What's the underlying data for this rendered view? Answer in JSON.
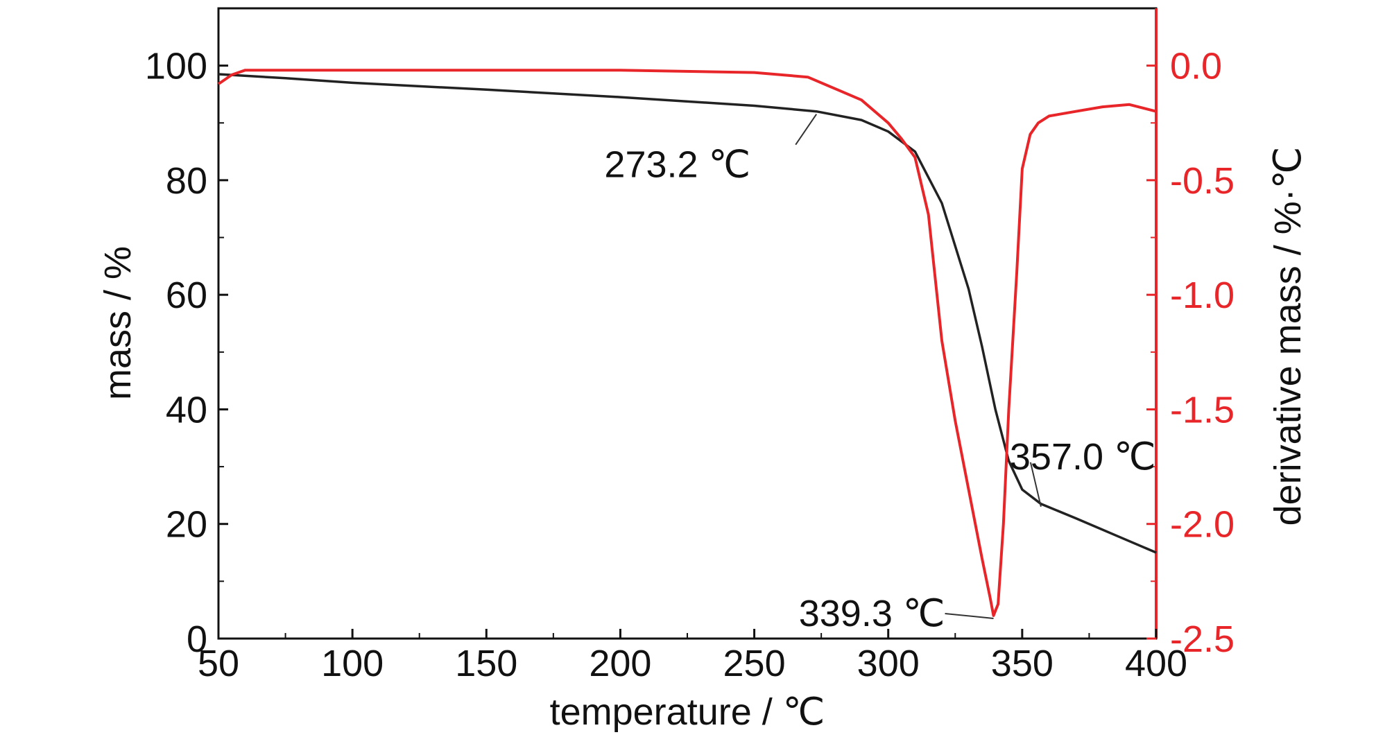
{
  "chart_data": {
    "type": "line",
    "title": "",
    "xlabel": "temperature / ℃",
    "ylabel": "mass / %",
    "y2label": "derivative mass / %·℃",
    "xlim": [
      50,
      400
    ],
    "ylim": [
      0,
      110
    ],
    "y2lim": [
      -2.5,
      0.25
    ],
    "x_ticks": [
      "50",
      "100",
      "150",
      "200",
      "250",
      "300",
      "350",
      "400"
    ],
    "y_ticks": [
      "0",
      "20",
      "40",
      "60",
      "80",
      "100"
    ],
    "y2_ticks": [
      "0.0",
      "-0.5",
      "-1.0",
      "-1.5",
      "-2.0",
      "-2.5"
    ],
    "grid": false,
    "legend": "none",
    "colors": {
      "mass": "#222222",
      "derivative": "#e8262a",
      "right_axis": "#e8262a"
    },
    "series": [
      {
        "axis": "left",
        "x": [
          50,
          75,
          100,
          150,
          200,
          250,
          273.2,
          290,
          300,
          310,
          320,
          330,
          335,
          340,
          345,
          350,
          357,
          370,
          385,
          400
        ],
        "y": [
          98.5,
          97.8,
          97.0,
          95.8,
          94.5,
          93.0,
          92.0,
          90.5,
          88.5,
          85.0,
          76.0,
          61.0,
          51.0,
          40.0,
          31.0,
          26.0,
          23.5,
          21.0,
          18.0,
          15.0
        ]
      },
      {
        "axis": "right",
        "x": [
          50,
          55,
          60,
          100,
          150,
          200,
          250,
          270,
          280,
          290,
          300,
          305,
          310,
          315,
          320,
          325,
          330,
          335,
          338,
          339.3,
          341,
          343,
          345,
          348,
          350,
          353,
          356,
          360,
          370,
          380,
          390,
          400
        ],
        "y": [
          -0.08,
          -0.04,
          -0.02,
          -0.02,
          -0.02,
          -0.02,
          -0.03,
          -0.05,
          -0.1,
          -0.15,
          -0.25,
          -0.32,
          -0.4,
          -0.65,
          -1.2,
          -1.55,
          -1.85,
          -2.15,
          -2.32,
          -2.4,
          -2.35,
          -2.0,
          -1.5,
          -0.9,
          -0.45,
          -0.3,
          -0.25,
          -0.22,
          -0.2,
          -0.18,
          -0.17,
          -0.2
        ]
      }
    ],
    "annotations": [
      {
        "text": "273.2 ℃",
        "x": 273.2,
        "axis": "left",
        "y": 92.0
      },
      {
        "text": "339.3 ℃",
        "x": 339.3,
        "axis": "right",
        "y": -2.4
      },
      {
        "text": "357.0 ℃",
        "x": 357.0,
        "axis": "left",
        "y": 23.5
      }
    ]
  }
}
